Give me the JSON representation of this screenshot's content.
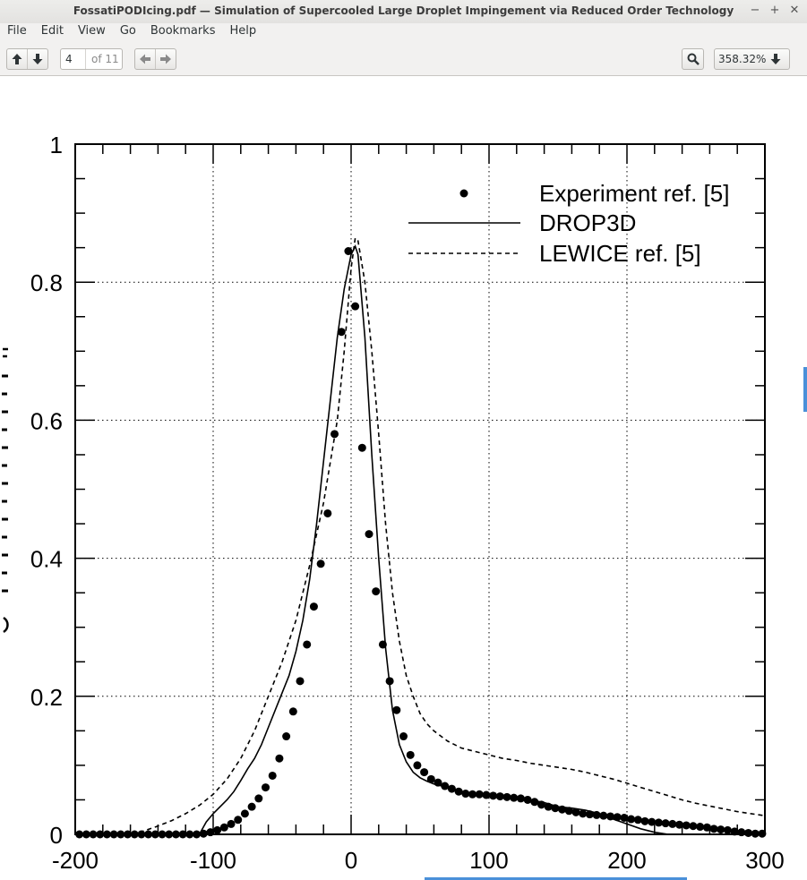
{
  "window": {
    "title": "FossatiPODIcing.pdf — Simulation of Supercooled Large Droplet Impingement via Reduced Order Technology",
    "buttons": {
      "minimize": "−",
      "maximize": "+",
      "close": "✕"
    }
  },
  "menu": [
    "File",
    "Edit",
    "View",
    "Go",
    "Bookmarks",
    "Help"
  ],
  "toolbar": {
    "current_page": "4",
    "page_count_label": "of 11",
    "zoom": "358.32%"
  },
  "icons": {
    "prev_page": "arrow-up-icon",
    "next_page": "arrow-down-icon",
    "back": "arrow-left-icon",
    "forward": "arrow-right-icon",
    "search": "search-icon",
    "zoom_menu": "arrow-down-icon"
  },
  "chart_data": {
    "type": "scatter",
    "title": "",
    "xlabel": "",
    "ylabel": "",
    "xlim": [
      -200,
      300
    ],
    "ylim": [
      0,
      1
    ],
    "xticks": [
      -200,
      -100,
      0,
      100,
      200,
      300
    ],
    "yticks": [
      0,
      0.2,
      0.4,
      0.6,
      0.8,
      1
    ],
    "ytick_labels": [
      "0",
      "0.2",
      "0.4",
      "0.6",
      "0.8",
      "1"
    ],
    "grid": "dotted",
    "legend_position": "top-right",
    "series": [
      {
        "name": "Experiment ref. [5]",
        "style": "markers",
        "x": [
          -197,
          -192,
          -187,
          -182,
          -177,
          -172,
          -167,
          -162,
          -157,
          -152,
          -147,
          -142,
          -137,
          -132,
          -127,
          -122,
          -117,
          -112,
          -107,
          -102,
          -97,
          -92,
          -87,
          -82,
          -77,
          -72,
          -67,
          -62,
          -57,
          -52,
          -47,
          -42,
          -37,
          -32,
          -27,
          -22,
          -17,
          -12,
          -7,
          -2,
          3,
          8,
          13,
          18,
          23,
          28,
          33,
          38,
          43,
          48,
          53,
          58,
          63,
          68,
          73,
          78,
          83,
          88,
          93,
          98,
          103,
          108,
          113,
          118,
          123,
          128,
          133,
          138,
          143,
          148,
          153,
          158,
          163,
          168,
          173,
          178,
          183,
          188,
          193,
          198,
          203,
          208,
          213,
          218,
          223,
          228,
          233,
          238,
          243,
          248,
          253,
          258,
          263,
          268,
          273,
          278,
          283,
          288,
          293,
          298
        ],
        "y": [
          0,
          0,
          0,
          0,
          0,
          0,
          0,
          0,
          0,
          0,
          0,
          0,
          0,
          0,
          0,
          0,
          0,
          0,
          0.001,
          0.003,
          0.006,
          0.01,
          0.015,
          0.021,
          0.03,
          0.04,
          0.052,
          0.068,
          0.085,
          0.11,
          0.142,
          0.178,
          0.222,
          0.275,
          0.33,
          0.392,
          0.465,
          0.58,
          0.728,
          0.845,
          0.765,
          0.56,
          0.435,
          0.352,
          0.275,
          0.222,
          0.18,
          0.142,
          0.115,
          0.1,
          0.09,
          0.08,
          0.075,
          0.07,
          0.066,
          0.062,
          0.059,
          0.058,
          0.058,
          0.057,
          0.056,
          0.055,
          0.054,
          0.053,
          0.052,
          0.05,
          0.047,
          0.043,
          0.04,
          0.038,
          0.036,
          0.034,
          0.032,
          0.03,
          0.029,
          0.028,
          0.027,
          0.026,
          0.025,
          0.024,
          0.022,
          0.021,
          0.019,
          0.018,
          0.017,
          0.016,
          0.015,
          0.014,
          0.013,
          0.012,
          0.011,
          0.01,
          0.008,
          0.007,
          0.006,
          0.004,
          0.003,
          0.002,
          0.001,
          0.001
        ]
      },
      {
        "name": "DROP3D",
        "style": "solid",
        "x": [
          -200,
          -110,
          -105,
          -100,
          -95,
          -90,
          -85,
          -80,
          -75,
          -70,
          -65,
          -60,
          -55,
          -50,
          -45,
          -40,
          -35,
          -30,
          -25,
          -20,
          -15,
          -10,
          -5,
          0,
          3,
          5,
          10,
          15,
          20,
          25,
          30,
          35,
          40,
          45,
          50,
          55,
          60,
          70,
          80,
          90,
          100,
          110,
          120,
          130,
          140,
          150,
          160,
          170,
          180,
          190,
          200,
          210,
          220,
          230,
          240,
          250,
          260,
          270,
          280,
          290,
          300
        ],
        "y": [
          0,
          0,
          0.018,
          0.03,
          0.04,
          0.05,
          0.062,
          0.078,
          0.095,
          0.11,
          0.13,
          0.155,
          0.18,
          0.205,
          0.23,
          0.265,
          0.31,
          0.37,
          0.45,
          0.54,
          0.63,
          0.72,
          0.79,
          0.84,
          0.852,
          0.84,
          0.72,
          0.55,
          0.4,
          0.27,
          0.18,
          0.13,
          0.105,
          0.09,
          0.082,
          0.077,
          0.073,
          0.068,
          0.062,
          0.058,
          0.055,
          0.054,
          0.053,
          0.05,
          0.046,
          0.04,
          0.038,
          0.035,
          0.03,
          0.022,
          0.015,
          0.008,
          0.003,
          0,
          0,
          0,
          0,
          0,
          0,
          0,
          0
        ]
      },
      {
        "name": "LEWICE ref. [5]",
        "style": "dashed",
        "x": [
          -200,
          -160,
          -150,
          -140,
          -130,
          -120,
          -110,
          -100,
          -90,
          -80,
          -70,
          -60,
          -50,
          -40,
          -30,
          -20,
          -10,
          -5,
          0,
          3,
          5,
          10,
          15,
          20,
          25,
          30,
          35,
          40,
          45,
          50,
          55,
          60,
          70,
          80,
          90,
          100,
          110,
          120,
          130,
          140,
          150,
          160,
          170,
          180,
          190,
          200,
          210,
          220,
          230,
          240,
          250,
          260,
          270,
          280,
          290,
          300
        ],
        "y": [
          0,
          0,
          0.005,
          0.012,
          0.02,
          0.03,
          0.042,
          0.058,
          0.08,
          0.11,
          0.15,
          0.2,
          0.25,
          0.31,
          0.39,
          0.48,
          0.6,
          0.7,
          0.82,
          0.864,
          0.86,
          0.8,
          0.7,
          0.58,
          0.45,
          0.35,
          0.28,
          0.23,
          0.2,
          0.175,
          0.16,
          0.15,
          0.135,
          0.125,
          0.12,
          0.115,
          0.11,
          0.107,
          0.103,
          0.1,
          0.097,
          0.094,
          0.09,
          0.085,
          0.08,
          0.074,
          0.068,
          0.062,
          0.056,
          0.05,
          0.045,
          0.041,
          0.037,
          0.033,
          0.03,
          0.027
        ]
      }
    ]
  }
}
